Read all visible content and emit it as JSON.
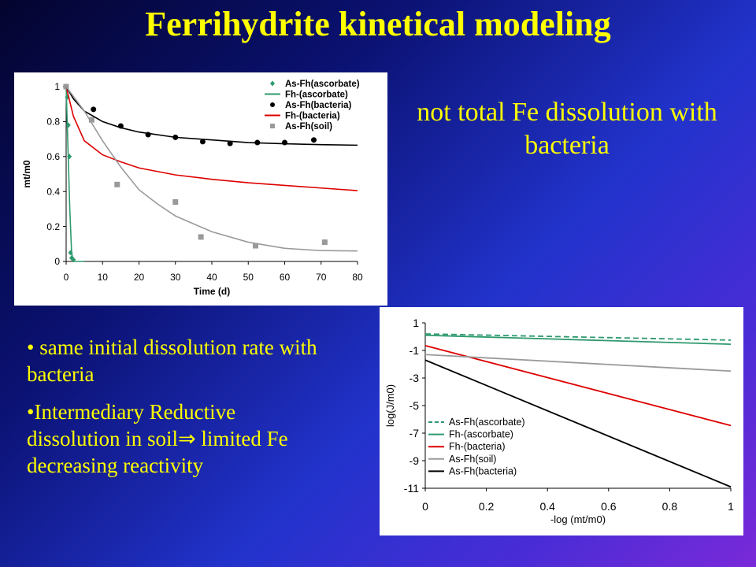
{
  "slide": {
    "title": "Ferrihydrite kinetical modeling",
    "note": "not total Fe dissolution with bacteria",
    "bullets": [
      {
        "symbol": "•",
        "text": " same initial dissolution rate with bacteria"
      },
      {
        "symbol": "•",
        "text": "Intermediary Reductive dissolution in soil⇒ limited Fe decreasing reactivity"
      }
    ]
  },
  "chart_data": [
    {
      "type": "scatter",
      "xlabel": "Time (d)",
      "ylabel": "mt/m0",
      "xlim": [
        0,
        80
      ],
      "ylim": [
        0,
        1
      ],
      "xticks": [
        0,
        10,
        20,
        30,
        40,
        50,
        60,
        70,
        80
      ],
      "yticks": [
        0,
        0.2,
        0.4,
        0.6,
        0.8,
        1
      ],
      "yticklabels": [
        "0",
        "0.2",
        "0.4",
        "0.6",
        "0.8",
        "1"
      ],
      "grid": false,
      "legend_position": "top-right",
      "series": [
        {
          "name": "As-Fh(ascorbate)",
          "kind": "points",
          "marker": "diamond",
          "color": "#2e9a6e",
          "x": [
            0,
            0.3,
            0.6,
            0.9,
            1.2,
            1.5,
            2.0
          ],
          "y": [
            1.0,
            0.94,
            0.78,
            0.6,
            0.05,
            0.02,
            0.01
          ]
        },
        {
          "name": "Fh-(ascorbate)",
          "kind": "line",
          "color": "#2e9a6e",
          "x": [
            0,
            0.5,
            1.0,
            1.5,
            2.0,
            3,
            5
          ],
          "y": [
            1.0,
            0.65,
            0.3,
            0.05,
            0.0,
            0.0,
            0.0
          ]
        },
        {
          "name": "As-Fh(bacteria)",
          "kind": "points",
          "marker": "circle",
          "color": "#000000",
          "x": [
            0,
            7.5,
            15,
            22.5,
            30,
            37.5,
            45,
            52.5,
            60,
            68
          ],
          "y": [
            1.0,
            0.87,
            0.775,
            0.725,
            0.71,
            0.685,
            0.675,
            0.68,
            0.68,
            0.695
          ]
        },
        {
          "name": "Fh-(bacteria)",
          "kind": "line",
          "color": "#dd0000",
          "x": [
            0,
            2,
            5,
            10,
            15,
            20,
            30,
            40,
            50,
            60,
            70,
            80
          ],
          "y": [
            1.0,
            0.83,
            0.69,
            0.61,
            0.57,
            0.535,
            0.495,
            0.47,
            0.45,
            0.435,
            0.42,
            0.405
          ]
        },
        {
          "name": "As-Fh(soil)",
          "kind": "points",
          "marker": "square",
          "color": "#9a9a9a",
          "x": [
            0,
            7,
            14,
            30,
            37,
            52,
            71
          ],
          "y": [
            1.0,
            0.81,
            0.44,
            0.34,
            0.14,
            0.09,
            0.11
          ]
        },
        {
          "name": "As-Fh(bacteria) fit",
          "kind": "line",
          "color": "#000000",
          "legend": false,
          "x": [
            0,
            2,
            5,
            10,
            15,
            20,
            30,
            40,
            50,
            60,
            70,
            80
          ],
          "y": [
            1.0,
            0.93,
            0.86,
            0.8,
            0.765,
            0.74,
            0.71,
            0.695,
            0.68,
            0.673,
            0.668,
            0.665
          ]
        },
        {
          "name": "As-Fh(soil) fit",
          "kind": "line",
          "color": "#9a9a9a",
          "legend": false,
          "x": [
            0,
            5,
            10,
            15,
            20,
            25,
            30,
            40,
            50,
            60,
            70,
            80
          ],
          "y": [
            1.0,
            0.86,
            0.69,
            0.54,
            0.41,
            0.33,
            0.26,
            0.17,
            0.11,
            0.075,
            0.062,
            0.06
          ]
        }
      ]
    },
    {
      "type": "line",
      "xlabel": "-log (mt/m0)",
      "ylabel": "log(J/m0)",
      "xlim": [
        0,
        1
      ],
      "ylim": [
        -11,
        1
      ],
      "xticks": [
        0,
        0.2,
        0.4,
        0.6,
        0.8,
        1
      ],
      "yticks": [
        1,
        -1,
        -3,
        -5,
        -7,
        -9,
        -11
      ],
      "grid": false,
      "legend_position": "bottom-left",
      "series": [
        {
          "name": "As-Fh(ascorbate)",
          "color": "#2e9a6e",
          "dash": true,
          "x": [
            0,
            1
          ],
          "y": [
            0.2,
            -0.25
          ]
        },
        {
          "name": "Fh-(ascorbate)",
          "color": "#2e9a6e",
          "dash": false,
          "x": [
            0,
            1
          ],
          "y": [
            0.1,
            -0.55
          ]
        },
        {
          "name": "Fh-(bacteria)",
          "color": "#dd0000",
          "dash": false,
          "x": [
            0,
            1
          ],
          "y": [
            -0.65,
            -6.45
          ]
        },
        {
          "name": "As-Fh(soil)",
          "color": "#9a9a9a",
          "dash": false,
          "x": [
            0,
            1
          ],
          "y": [
            -1.3,
            -2.5
          ]
        },
        {
          "name": "As-Fh(bacteria)",
          "color": "#000000",
          "dash": false,
          "x": [
            0,
            1
          ],
          "y": [
            -1.7,
            -10.9
          ]
        }
      ]
    }
  ]
}
